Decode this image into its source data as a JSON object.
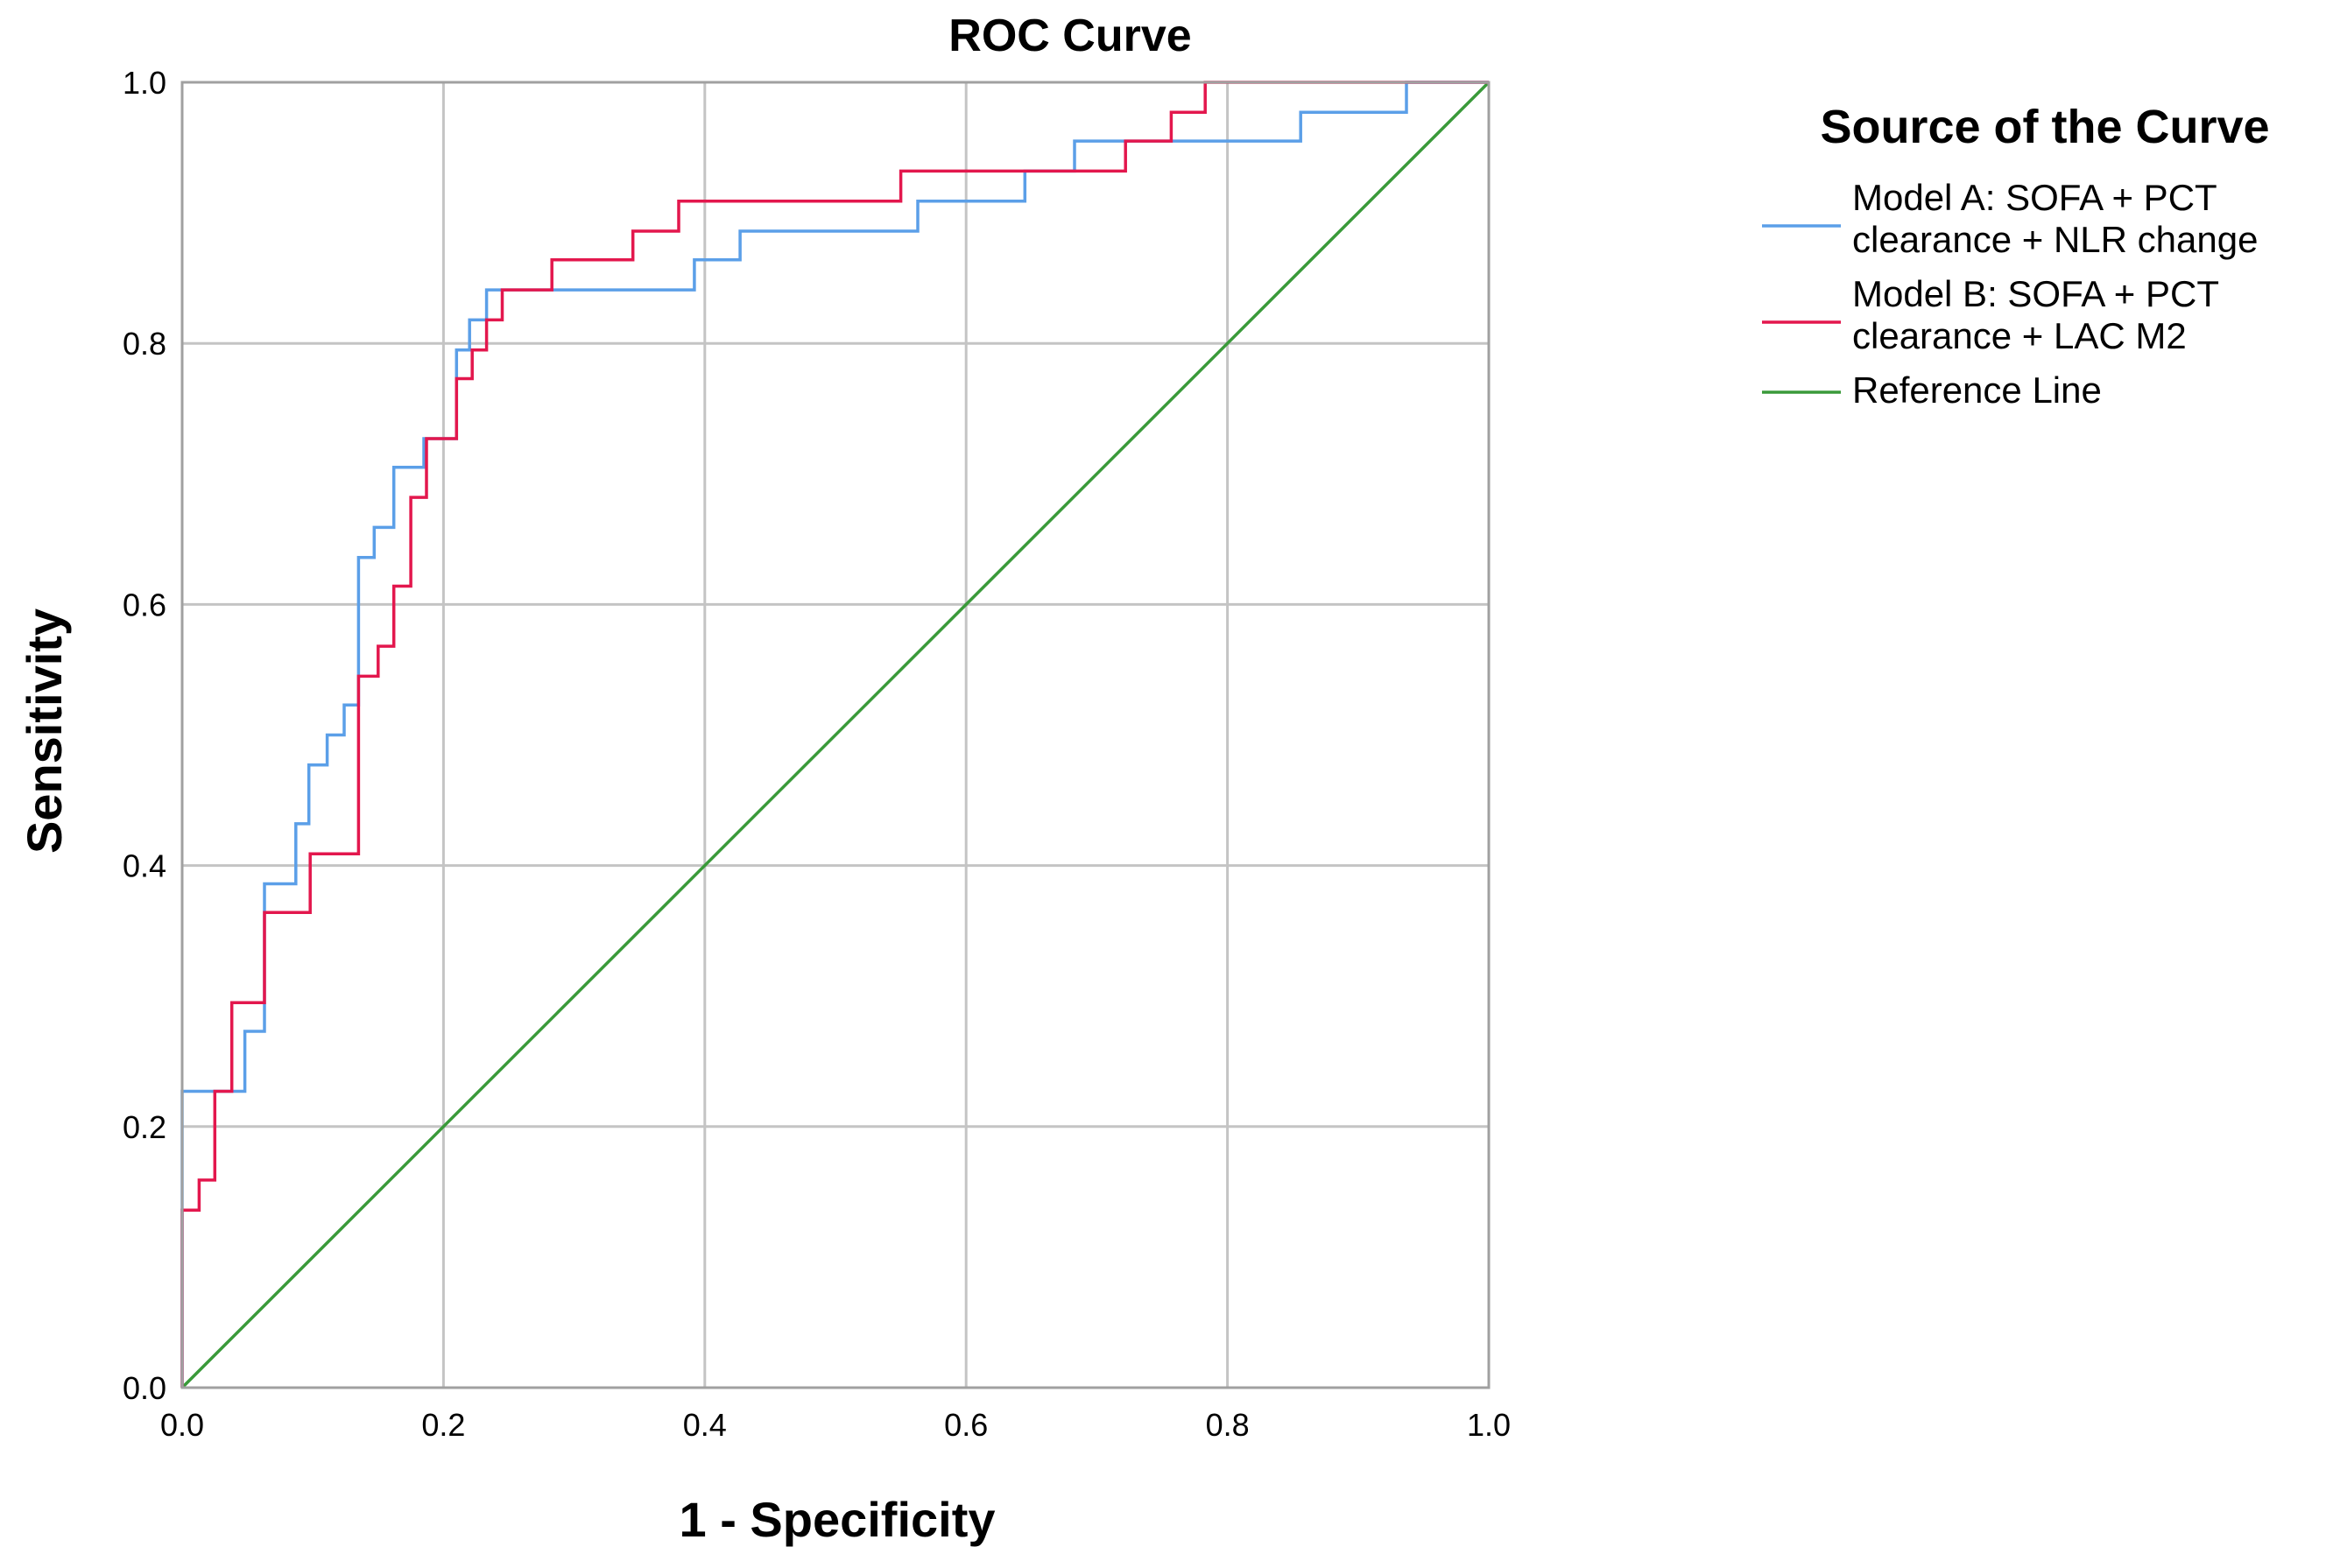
{
  "chart_data": {
    "type": "line",
    "title": "ROC Curve",
    "xlabel": "1 - Specificity",
    "ylabel": "Sensitivity",
    "xlim": [
      0,
      1
    ],
    "ylim": [
      0,
      1
    ],
    "xticks": [
      "0.0",
      "0.2",
      "0.4",
      "0.6",
      "0.8",
      "1.0"
    ],
    "yticks": [
      "0.0",
      "0.2",
      "0.4",
      "0.6",
      "0.8",
      "1.0"
    ],
    "grid": true,
    "legend": {
      "title": "Source of the Curve",
      "placement": "right",
      "entries": [
        {
          "lines": [
            "Model A: SOFA + PCT",
            "clearance + NLR change"
          ],
          "color": "#5b9fe8"
        },
        {
          "lines": [
            "Model B: SOFA + PCT",
            "clearance + LAC M2"
          ],
          "color": "#e3174d"
        },
        {
          "lines": [
            "Reference Line"
          ],
          "color": "#3a9a3a"
        }
      ]
    },
    "series": [
      {
        "name": "Model A: SOFA + PCT clearance + NLR change",
        "color": "#5b9fe8",
        "x": [
          0,
          0,
          0.0,
          0.0,
          0.048,
          0.048,
          0.063,
          0.063,
          0.087,
          0.087,
          0.097,
          0.097,
          0.111,
          0.111,
          0.124,
          0.124,
          0.135,
          0.135,
          0.147,
          0.147,
          0.162,
          0.162,
          0.185,
          0.185,
          0.21,
          0.21,
          0.22,
          0.22,
          0.233,
          0.233,
          0.392,
          0.392,
          0.427,
          0.427,
          0.563,
          0.563,
          0.645,
          0.645,
          0.683,
          0.683,
          0.856,
          0.856,
          0.937,
          0.937,
          1.0
        ],
        "y": [
          0,
          0.136,
          0.136,
          0.227,
          0.227,
          0.273,
          0.273,
          0.386,
          0.386,
          0.432,
          0.432,
          0.477,
          0.477,
          0.5,
          0.5,
          0.523,
          0.523,
          0.636,
          0.636,
          0.659,
          0.659,
          0.705,
          0.705,
          0.727,
          0.727,
          0.795,
          0.795,
          0.818,
          0.818,
          0.841,
          0.841,
          0.864,
          0.864,
          0.886,
          0.886,
          0.909,
          0.909,
          0.932,
          0.932,
          0.955,
          0.955,
          0.977,
          0.977,
          1.0,
          1.0
        ]
      },
      {
        "name": "Model B: SOFA + PCT clearance + LAC M2",
        "color": "#e3174d",
        "x": [
          0,
          0,
          0.013,
          0.013,
          0.025,
          0.025,
          0.038,
          0.038,
          0.063,
          0.063,
          0.098,
          0.098,
          0.135,
          0.135,
          0.15,
          0.15,
          0.162,
          0.162,
          0.175,
          0.175,
          0.187,
          0.187,
          0.21,
          0.21,
          0.222,
          0.222,
          0.233,
          0.233,
          0.245,
          0.245,
          0.283,
          0.283,
          0.345,
          0.345,
          0.38,
          0.38,
          0.55,
          0.55,
          0.722,
          0.722,
          0.757,
          0.757,
          0.783,
          0.783,
          1.0
        ],
        "y": [
          0,
          0.136,
          0.136,
          0.159,
          0.159,
          0.227,
          0.227,
          0.295,
          0.295,
          0.364,
          0.364,
          0.409,
          0.409,
          0.545,
          0.545,
          0.568,
          0.568,
          0.614,
          0.614,
          0.682,
          0.682,
          0.727,
          0.727,
          0.773,
          0.773,
          0.795,
          0.795,
          0.818,
          0.818,
          0.841,
          0.841,
          0.864,
          0.864,
          0.886,
          0.886,
          0.909,
          0.909,
          0.932,
          0.932,
          0.955,
          0.955,
          0.977,
          0.977,
          1.0,
          1.0
        ]
      },
      {
        "name": "Reference Line",
        "color": "#3a9a3a",
        "x": [
          0,
          1
        ],
        "y": [
          0,
          1
        ]
      }
    ]
  }
}
